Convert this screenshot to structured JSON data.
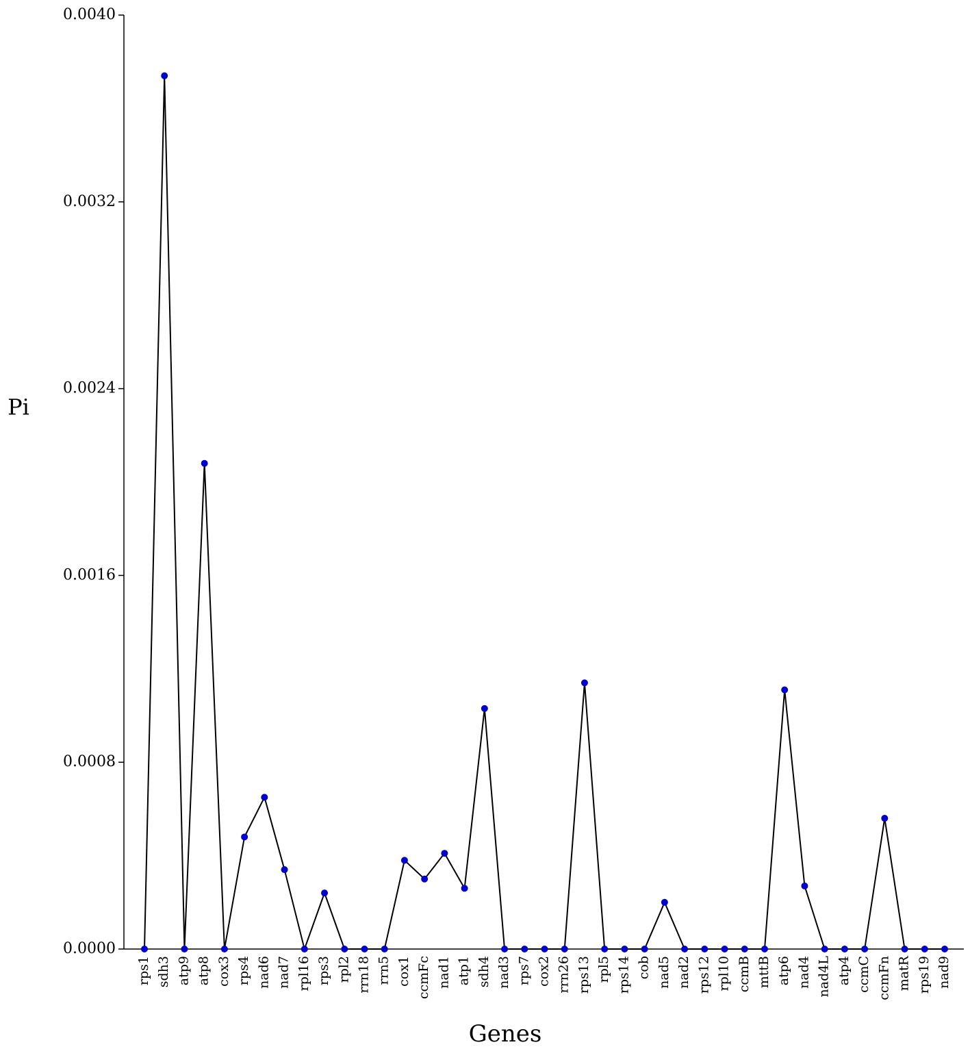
{
  "chart_data": {
    "type": "line",
    "y_label": "Pi",
    "x_label": "Genes",
    "categories": [
      "rps1",
      "sdh3",
      "atp9",
      "atp8",
      "cox3",
      "rps4",
      "nad6",
      "nad7",
      "rpl16",
      "rps3",
      "rpl2",
      "rrn18",
      "rrn5",
      "cox1",
      "ccmFc",
      "nad1",
      "atp1",
      "sdh4",
      "nad3",
      "rps7",
      "cox2",
      "rrn26",
      "rps13",
      "rpl5",
      "rps14",
      "cob",
      "nad5",
      "nad2",
      "rps12",
      "rpl10",
      "ccmB",
      "mttB",
      "atp6",
      "nad4",
      "nad4L",
      "atp4",
      "ccmC",
      "ccmFn",
      "matR",
      "rps19",
      "nad9"
    ],
    "values": [
      0,
      0.00374,
      0,
      0.00208,
      0,
      0.00048,
      0.00065,
      0.00034,
      0,
      0.00024,
      0,
      0,
      0,
      0.00038,
      0.0003,
      0.00041,
      0.00026,
      0.00103,
      0,
      0,
      0,
      0,
      0.00114,
      0,
      0,
      0,
      0.0002,
      0,
      0,
      0,
      0,
      0,
      0.00111,
      0.00027,
      0,
      0,
      0,
      0.00056,
      0,
      0,
      0
    ],
    "color": "#0000cc",
    "line_color": "#000000",
    "ylim": [
      0,
      0.004
    ],
    "yticks": [
      {
        "value": 0,
        "label": "0.0000"
      },
      {
        "value": 0.0008,
        "label": "0.0008"
      },
      {
        "value": 0.0016,
        "label": "0.0016"
      },
      {
        "value": 0.0024,
        "label": "0.0024"
      },
      {
        "value": 0.0032,
        "label": "0.0032"
      },
      {
        "value": 0.004,
        "label": "0.0040"
      }
    ],
    "grid": false
  }
}
